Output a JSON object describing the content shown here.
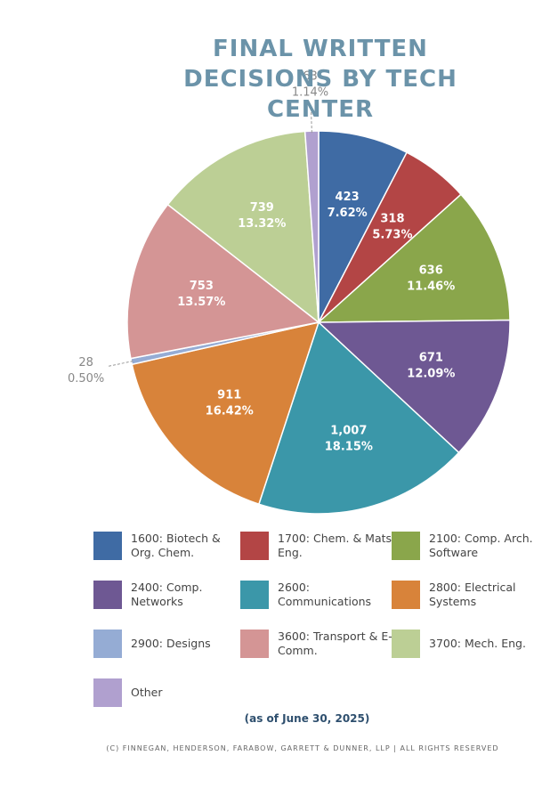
{
  "chart_data": {
    "type": "pie",
    "title": "FINAL WRITTEN DECISIONS BY TECH CENTER",
    "subtitle": "(as of June 30, 2025)",
    "categories": [
      "1600: Biotech & Org. Chem.",
      "1700: Chem. & Mats. Eng.",
      "2100: Comp. Arch. & Software",
      "2400: Comp. Networks",
      "2600: Communications",
      "2800: Electrical Systems",
      "2900: Designs",
      "3600: Transport & E-Comm.",
      "3700: Mech. Eng.",
      "Other"
    ],
    "values": [
      423,
      318,
      636,
      671,
      1007,
      911,
      28,
      753,
      739,
      63
    ],
    "value_labels": [
      "423",
      "318",
      "636",
      "671",
      "1,007",
      "911",
      "28",
      "753",
      "739",
      "63"
    ],
    "percent_labels": [
      "7.62%",
      "5.73%",
      "11.46%",
      "12.09%",
      "18.15%",
      "16.42%",
      "0.50%",
      "13.57%",
      "13.32%",
      "1.14%"
    ],
    "colors": [
      "#3f6ba4",
      "#b34545",
      "#8aa64b",
      "#6e5893",
      "#3b97a9",
      "#d8833a",
      "#95acd4",
      "#d49595",
      "#bccf95",
      "#b0a0cf"
    ]
  },
  "footer": "(C) FINNEGAN, HENDERSON, FARABOW, GARRETT & DUNNER, LLP | ALL RIGHTS RESERVED"
}
